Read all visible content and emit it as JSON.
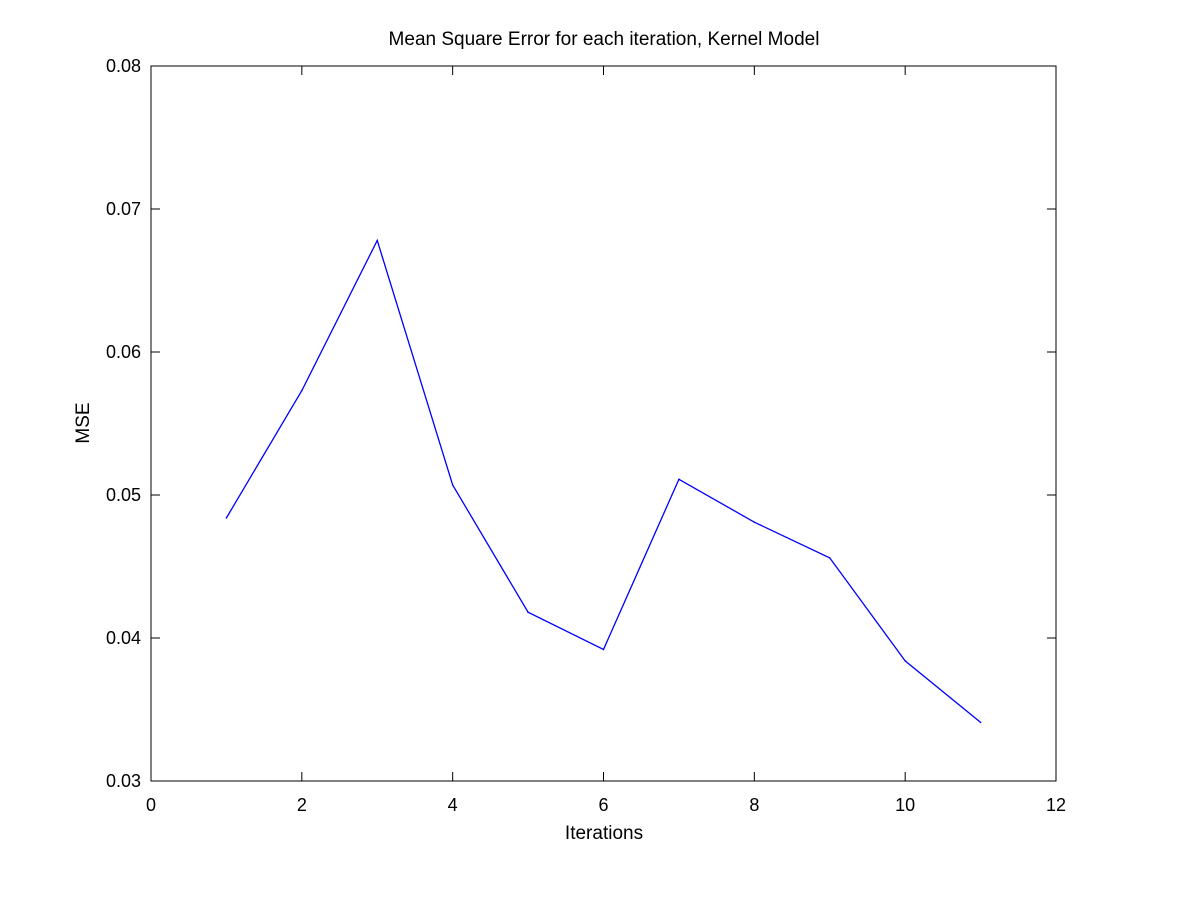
{
  "chart_data": {
    "type": "line",
    "title": "Mean Square Error for each iteration, Kernel Model",
    "xlabel": "Iterations",
    "ylabel": "MSE",
    "xlim": [
      0,
      12
    ],
    "ylim": [
      0.03,
      0.08
    ],
    "xticks": [
      0,
      2,
      4,
      6,
      8,
      10,
      12
    ],
    "xtick_labels": [
      "0",
      "2",
      "4",
      "6",
      "8",
      "10",
      "12"
    ],
    "yticks": [
      0.03,
      0.04,
      0.05,
      0.06,
      0.07,
      0.08
    ],
    "ytick_labels": [
      "0.03",
      "0.04",
      "0.05",
      "0.06",
      "0.07",
      "0.08"
    ],
    "grid": false,
    "series": [
      {
        "color": "#0000ff",
        "x": [
          1,
          2,
          3,
          4,
          5,
          6,
          7,
          8,
          9,
          10,
          11
        ],
        "values": [
          0.0484,
          0.0573,
          0.0678,
          0.0507,
          0.0418,
          0.0392,
          0.0511,
          0.0481,
          0.0456,
          0.0384,
          0.0341
        ]
      }
    ]
  }
}
